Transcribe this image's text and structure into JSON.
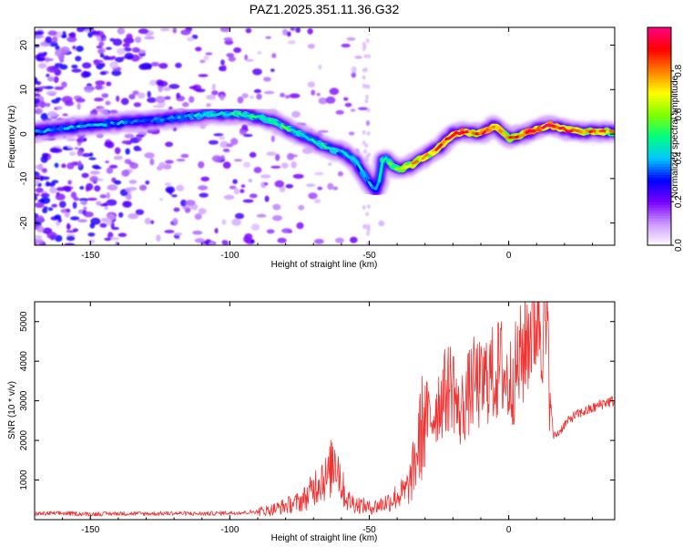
{
  "title": "PAZ1.2025.351.11.36.G32",
  "chart_data": [
    {
      "type": "heatmap",
      "name": "spectrogram",
      "xlabel": "Height of straight line (km)",
      "ylabel": "Frequency (Hz)",
      "xlim": [
        -170,
        38
      ],
      "ylim": [
        -25,
        24
      ],
      "xticks": [
        -150,
        -100,
        -50,
        0
      ],
      "yticks": [
        -20,
        -10,
        0,
        10,
        20
      ],
      "colorbar": {
        "label": "Normalized spectral amplitude",
        "range": [
          0,
          1
        ],
        "ticks": [
          "0.0",
          "0.2",
          "0.4",
          "0.6",
          "0.8"
        ],
        "tick_values": [
          0.0,
          0.2,
          0.4,
          0.6,
          0.8
        ],
        "colors": [
          "#ffffff",
          "#cc99ff",
          "#7a00ff",
          "#0000ff",
          "#00c8ff",
          "#00ff80",
          "#80ff00",
          "#ffff00",
          "#ff8000",
          "#ff0000",
          "#ff0080"
        ]
      },
      "ridge": {
        "x": [
          -170,
          -150,
          -130,
          -115,
          -105,
          -95,
          -85,
          -75,
          -65,
          -60,
          -55,
          -50,
          -47,
          -45,
          -40,
          -35,
          -30,
          -25,
          -20,
          -15,
          -10,
          -5,
          0,
          5,
          10,
          15,
          20,
          25,
          30,
          38
        ],
        "y": [
          0.5,
          2,
          3,
          4,
          4.5,
          4.5,
          3,
          0,
          -3,
          -4,
          -6,
          -11,
          -13,
          -5,
          -8,
          -7,
          -5,
          -3,
          0,
          0.5,
          0,
          2,
          -1,
          0,
          1,
          2,
          1,
          0.5,
          0.5,
          0.5
        ],
        "amplitude": [
          0.35,
          0.4,
          0.35,
          0.4,
          0.45,
          0.5,
          0.5,
          0.5,
          0.45,
          0.45,
          0.45,
          0.4,
          0.35,
          0.45,
          0.55,
          0.7,
          0.75,
          0.85,
          0.95,
          0.9,
          0.85,
          0.9,
          0.8,
          0.85,
          0.9,
          0.95,
          0.9,
          0.85,
          0.8,
          0.75
        ]
      }
    },
    {
      "type": "line",
      "name": "snr",
      "xlabel": "Height of straight line (km)",
      "ylabel": "SNR (10 * v/v)",
      "xlim": [
        -170,
        38
      ],
      "ylim": [
        0,
        5500
      ],
      "xticks": [
        -150,
        -100,
        -50,
        0
      ],
      "yticks": [
        1000,
        2000,
        3000,
        4000,
        5000
      ],
      "color": "#ee3333",
      "x": [
        -170,
        -160,
        -150,
        -140,
        -130,
        -120,
        -110,
        -100,
        -95,
        -90,
        -85,
        -80,
        -75,
        -72,
        -70,
        -67,
        -65,
        -62,
        -60,
        -58,
        -55,
        -52,
        -50,
        -47,
        -45,
        -42,
        -40,
        -37,
        -35,
        -32,
        -30,
        -28,
        -25,
        -22,
        -20,
        -18,
        -15,
        -12,
        -10,
        -7,
        -5,
        -3,
        0,
        3,
        5,
        7,
        9,
        11,
        12,
        13,
        14,
        15,
        16,
        18,
        20,
        23,
        26,
        30,
        34,
        38
      ],
      "y": [
        150,
        160,
        140,
        155,
        150,
        160,
        150,
        170,
        180,
        200,
        250,
        350,
        450,
        600,
        800,
        1100,
        1000,
        1700,
        900,
        500,
        400,
        350,
        300,
        350,
        400,
        500,
        600,
        700,
        1000,
        2000,
        2700,
        2500,
        3000,
        3300,
        3500,
        2600,
        3100,
        3500,
        3300,
        3700,
        3600,
        3900,
        3400,
        3800,
        4200,
        4700,
        5100,
        5300,
        5000,
        4800,
        4400,
        3000,
        2100,
        2200,
        2400,
        2600,
        2700,
        2800,
        2950,
        3000
      ]
    }
  ]
}
